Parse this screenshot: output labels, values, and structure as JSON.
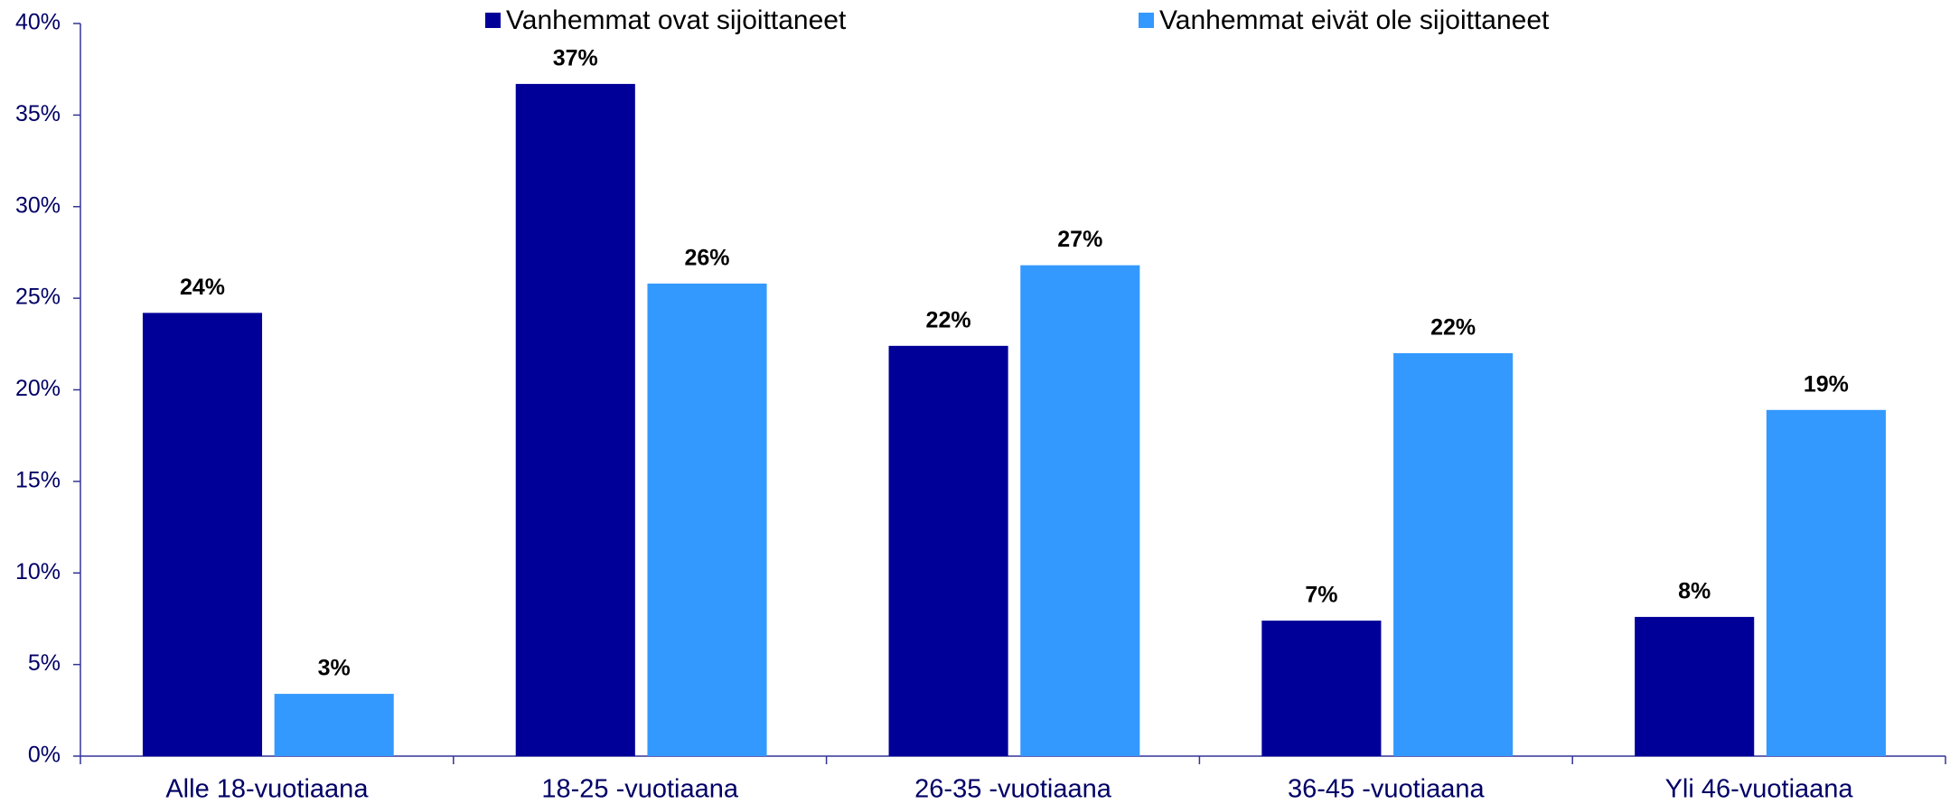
{
  "chart_data": {
    "type": "bar",
    "categories": [
      "Alle 18-vuotiaana",
      "18-25 -vuotiaana",
      "26-35 -vuotiaana",
      "36-45 -vuotiaana",
      "Yli 46-vuotiaana"
    ],
    "series": [
      {
        "name": "Vanhemmat ovat sijoittaneet",
        "color": "#000099",
        "values": [
          24.2,
          36.7,
          22.4,
          7.4,
          7.6
        ],
        "value_labels": [
          "24%",
          "37%",
          "22%",
          "7%",
          "8%"
        ]
      },
      {
        "name": "Vanhemmat eivät ole sijoittaneet",
        "color": "#3399ff",
        "values": [
          3.4,
          25.8,
          26.8,
          22.0,
          18.9
        ],
        "value_labels": [
          "3%",
          "26%",
          "27%",
          "22%",
          "19%"
        ]
      }
    ],
    "ylim": [
      0,
      40
    ],
    "yticks": [
      {
        "value": 0,
        "label": "0%"
      },
      {
        "value": 5,
        "label": "5%"
      },
      {
        "value": 10,
        "label": "10%"
      },
      {
        "value": 15,
        "label": "15%"
      },
      {
        "value": 20,
        "label": "20%"
      },
      {
        "value": 25,
        "label": "25%"
      },
      {
        "value": 30,
        "label": "30%"
      },
      {
        "value": 35,
        "label": "35%"
      },
      {
        "value": 40,
        "label": "40%"
      }
    ],
    "legend": "top"
  }
}
